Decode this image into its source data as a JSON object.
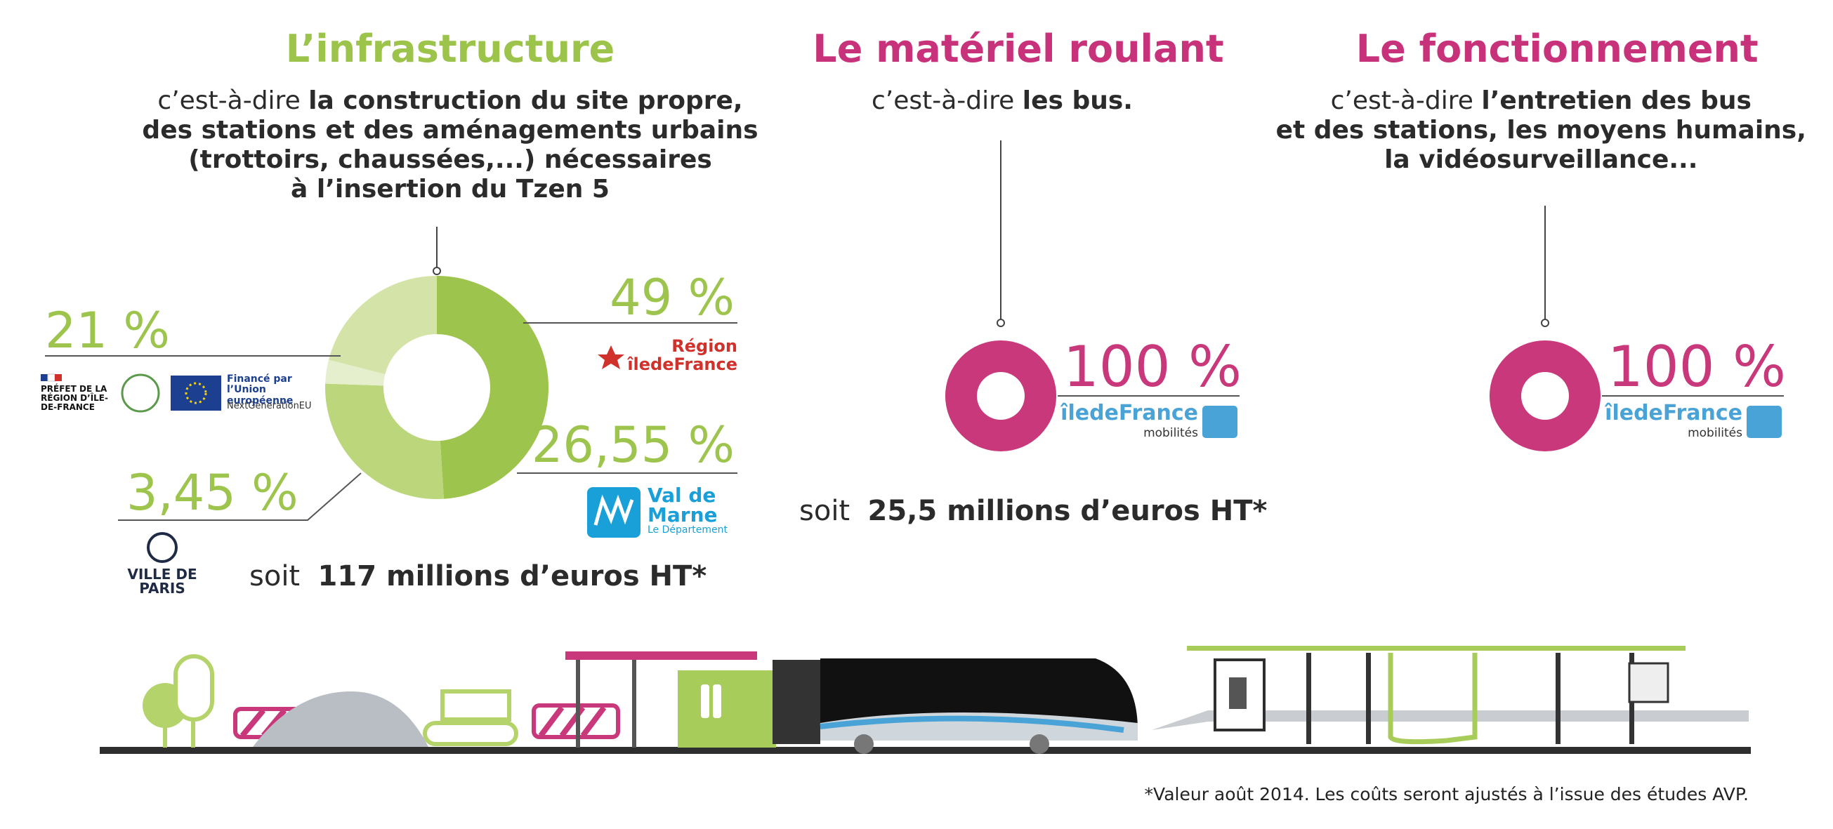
{
  "chart_data": [
    {
      "type": "pie",
      "title": "L’infrastructure",
      "subtitle_intro": "c’est-à-dire",
      "subtitle_lines": [
        "la construction du site propre,",
        "des stations et des aménagements urbains",
        "(trottoirs, chaussées,...) nécessaires",
        "à l’insertion du Tzen 5"
      ],
      "categories": [
        "Région îledeFrance",
        "Val de Marne",
        "VILLE DE PARIS",
        "PRÉFET DE LA RÉGION D’ÎLE-DE-FRANCE"
      ],
      "values": [
        49,
        26.55,
        3.45,
        21
      ],
      "value_labels": [
        "49 %",
        "26,55 %",
        "3,45 %",
        "21 %"
      ],
      "colors": [
        "#9dc44d",
        "#bcd77b",
        "#e6efcd",
        "#d4e4a8"
      ],
      "logo_notes": [
        "Le Département",
        "Financé par l’Union européenne",
        "NextGenerationEU"
      ],
      "total_prefix": "soit",
      "total": "117 millions d’euros HT*",
      "title_color": "#9cc44b",
      "donut": true
    },
    {
      "type": "pie",
      "title": "Le matériel roulant",
      "subtitle_intro": "c’est-à-dire",
      "subtitle_lines": [
        "les bus."
      ],
      "categories": [
        "îledeFrance"
      ],
      "values": [
        100
      ],
      "value_labels": [
        "100 %"
      ],
      "colors": [
        "#c8387a"
      ],
      "logo_notes": [
        "mobilités"
      ],
      "total_prefix": "soit",
      "total": "25,5 millions d’euros HT*",
      "title_color": "#c8327a",
      "donut": true
    },
    {
      "type": "pie",
      "title": "Le fonctionnement",
      "subtitle_intro": "c’est-à-dire",
      "subtitle_lines": [
        "l’entretien des bus",
        "et des stations, les moyens humains,",
        "la vidéosurveillance..."
      ],
      "categories": [
        "îledeFrance"
      ],
      "values": [
        100
      ],
      "value_labels": [
        "100 %"
      ],
      "colors": [
        "#c8387a"
      ],
      "logo_notes": [
        "mobilités"
      ],
      "title_color": "#c8327a",
      "donut": true
    }
  ],
  "footnote": "*Valeur août 2014. Les coûts seront ajustés à l’issue des études AVP."
}
